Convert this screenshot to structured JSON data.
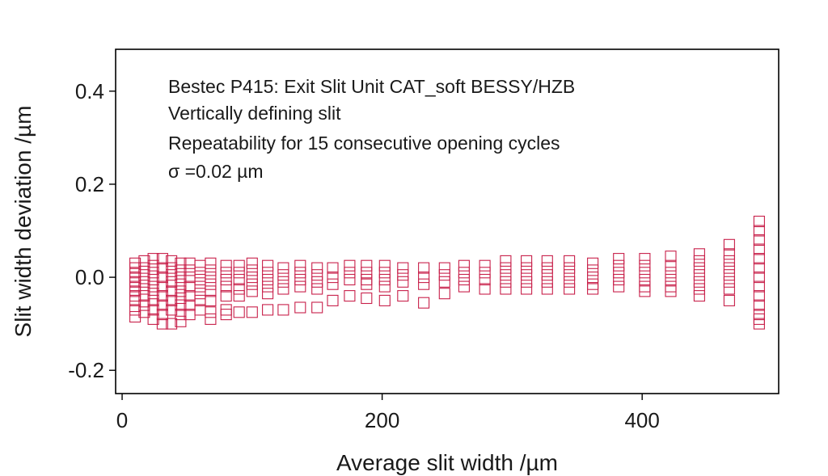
{
  "chart_data": {
    "type": "scatter",
    "xlabel": "Average slit width /µm",
    "ylabel": "Slit width deviation /µm",
    "xlim": [
      -5,
      505
    ],
    "ylim": [
      -0.25,
      0.49
    ],
    "xticks": [
      0,
      200,
      400
    ],
    "xtick_labels": [
      "0",
      "200",
      "400"
    ],
    "yticks": [
      -0.2,
      0.0,
      0.2,
      0.4
    ],
    "ytick_labels": [
      "-0.2",
      "0.0",
      "0.2",
      "0.4"
    ],
    "grid": false,
    "marker": "open-square",
    "color": "#c8204a",
    "annotations": [
      "Bestec P415: Exit Slit Unit CAT_soft BESSY/HZB",
      "Vertically defining slit",
      "Repeatability for 15 consecutive opening cycles",
      "σ =0.02 µm"
    ],
    "series": [
      {
        "points": [
          [
            10,
            0.03
          ],
          [
            10,
            0.02
          ],
          [
            10,
            0.01
          ],
          [
            10,
            0.0
          ],
          [
            10,
            -0.01
          ],
          [
            10,
            -0.02
          ],
          [
            10,
            -0.03
          ],
          [
            10,
            -0.04
          ],
          [
            10,
            -0.05
          ],
          [
            10,
            -0.07
          ],
          [
            10,
            -0.085
          ],
          [
            17,
            0.035
          ],
          [
            17,
            0.02
          ],
          [
            17,
            0.005
          ],
          [
            17,
            -0.01
          ],
          [
            17,
            -0.025
          ],
          [
            17,
            -0.04
          ],
          [
            17,
            -0.06
          ],
          [
            17,
            -0.075
          ],
          [
            24,
            0.04
          ],
          [
            24,
            0.025
          ],
          [
            24,
            0.01
          ],
          [
            24,
            -0.005
          ],
          [
            24,
            -0.02
          ],
          [
            24,
            -0.035
          ],
          [
            24,
            -0.05
          ],
          [
            24,
            -0.07
          ],
          [
            24,
            -0.09
          ],
          [
            31,
            0.04
          ],
          [
            31,
            0.02
          ],
          [
            31,
            0.0
          ],
          [
            31,
            -0.02
          ],
          [
            31,
            -0.04
          ],
          [
            31,
            -0.06
          ],
          [
            31,
            -0.08
          ],
          [
            31,
            -0.1
          ],
          [
            38,
            0.035
          ],
          [
            38,
            0.02
          ],
          [
            38,
            0.005
          ],
          [
            38,
            -0.01
          ],
          [
            38,
            -0.03
          ],
          [
            38,
            -0.05
          ],
          [
            38,
            -0.07
          ],
          [
            38,
            -0.1
          ],
          [
            45,
            0.03
          ],
          [
            45,
            0.015
          ],
          [
            45,
            0.0
          ],
          [
            45,
            -0.015
          ],
          [
            45,
            -0.03
          ],
          [
            45,
            -0.045
          ],
          [
            45,
            -0.06
          ],
          [
            45,
            -0.08
          ],
          [
            45,
            -0.095
          ],
          [
            52,
            0.03
          ],
          [
            52,
            0.015
          ],
          [
            52,
            0.0
          ],
          [
            52,
            -0.02
          ],
          [
            52,
            -0.04
          ],
          [
            52,
            -0.06
          ],
          [
            52,
            -0.08
          ],
          [
            60,
            0.025
          ],
          [
            60,
            0.01
          ],
          [
            60,
            -0.005
          ],
          [
            60,
            -0.02
          ],
          [
            60,
            -0.035
          ],
          [
            60,
            -0.05
          ],
          [
            60,
            -0.07
          ],
          [
            68,
            0.03
          ],
          [
            68,
            0.015
          ],
          [
            68,
            0.0
          ],
          [
            68,
            -0.015
          ],
          [
            68,
            -0.03
          ],
          [
            68,
            -0.05
          ],
          [
            68,
            -0.075
          ],
          [
            68,
            -0.09
          ],
          [
            80,
            0.025
          ],
          [
            80,
            0.01
          ],
          [
            80,
            -0.005
          ],
          [
            80,
            -0.02
          ],
          [
            80,
            -0.04
          ],
          [
            80,
            -0.07
          ],
          [
            80,
            -0.08
          ],
          [
            90,
            0.025
          ],
          [
            90,
            0.01
          ],
          [
            90,
            -0.005
          ],
          [
            90,
            -0.025
          ],
          [
            90,
            -0.04
          ],
          [
            90,
            -0.075
          ],
          [
            100,
            0.03
          ],
          [
            100,
            0.015
          ],
          [
            100,
            0.0
          ],
          [
            100,
            -0.015
          ],
          [
            100,
            -0.03
          ],
          [
            100,
            -0.075
          ],
          [
            112,
            0.025
          ],
          [
            112,
            0.01
          ],
          [
            112,
            -0.005
          ],
          [
            112,
            -0.02
          ],
          [
            112,
            -0.035
          ],
          [
            112,
            -0.07
          ],
          [
            124,
            0.02
          ],
          [
            124,
            0.005
          ],
          [
            124,
            -0.01
          ],
          [
            124,
            -0.025
          ],
          [
            124,
            -0.07
          ],
          [
            137,
            0.025
          ],
          [
            137,
            0.01
          ],
          [
            137,
            -0.005
          ],
          [
            137,
            -0.02
          ],
          [
            137,
            -0.065
          ],
          [
            150,
            0.02
          ],
          [
            150,
            0.005
          ],
          [
            150,
            -0.01
          ],
          [
            150,
            -0.025
          ],
          [
            150,
            -0.065
          ],
          [
            162,
            0.02
          ],
          [
            162,
            0.0
          ],
          [
            162,
            -0.015
          ],
          [
            162,
            -0.05
          ],
          [
            175,
            0.025
          ],
          [
            175,
            0.01
          ],
          [
            175,
            -0.005
          ],
          [
            175,
            -0.04
          ],
          [
            188,
            0.025
          ],
          [
            188,
            0.01
          ],
          [
            188,
            -0.005
          ],
          [
            188,
            -0.015
          ],
          [
            188,
            -0.045
          ],
          [
            202,
            0.025
          ],
          [
            202,
            0.01
          ],
          [
            202,
            -0.005
          ],
          [
            202,
            -0.02
          ],
          [
            202,
            -0.05
          ],
          [
            216,
            0.02
          ],
          [
            216,
            0.005
          ],
          [
            216,
            -0.01
          ],
          [
            216,
            -0.04
          ],
          [
            232,
            0.02
          ],
          [
            232,
            0.0
          ],
          [
            232,
            -0.015
          ],
          [
            232,
            -0.055
          ],
          [
            248,
            0.02
          ],
          [
            248,
            0.005
          ],
          [
            248,
            -0.01
          ],
          [
            248,
            -0.035
          ],
          [
            263,
            0.025
          ],
          [
            263,
            0.01
          ],
          [
            263,
            -0.005
          ],
          [
            263,
            -0.02
          ],
          [
            279,
            0.025
          ],
          [
            279,
            0.01
          ],
          [
            279,
            -0.005
          ],
          [
            279,
            -0.025
          ],
          [
            295,
            0.035
          ],
          [
            295,
            0.02
          ],
          [
            295,
            0.005
          ],
          [
            295,
            -0.01
          ],
          [
            295,
            -0.025
          ],
          [
            311,
            0.035
          ],
          [
            311,
            0.02
          ],
          [
            311,
            0.005
          ],
          [
            311,
            -0.01
          ],
          [
            311,
            -0.025
          ],
          [
            327,
            0.035
          ],
          [
            327,
            0.02
          ],
          [
            327,
            0.005
          ],
          [
            327,
            -0.01
          ],
          [
            327,
            -0.025
          ],
          [
            344,
            0.035
          ],
          [
            344,
            0.02
          ],
          [
            344,
            0.005
          ],
          [
            344,
            -0.01
          ],
          [
            344,
            -0.025
          ],
          [
            362,
            0.03
          ],
          [
            362,
            0.015
          ],
          [
            362,
            0.0
          ],
          [
            362,
            -0.015
          ],
          [
            362,
            -0.025
          ],
          [
            382,
            0.04
          ],
          [
            382,
            0.025
          ],
          [
            382,
            0.01
          ],
          [
            382,
            -0.005
          ],
          [
            382,
            -0.02
          ],
          [
            402,
            0.04
          ],
          [
            402,
            0.025
          ],
          [
            402,
            0.01
          ],
          [
            402,
            -0.005
          ],
          [
            402,
            -0.02
          ],
          [
            402,
            -0.03
          ],
          [
            422,
            0.045
          ],
          [
            422,
            0.025
          ],
          [
            422,
            0.01
          ],
          [
            422,
            -0.005
          ],
          [
            422,
            -0.02
          ],
          [
            422,
            -0.03
          ],
          [
            444,
            0.05
          ],
          [
            444,
            0.035
          ],
          [
            444,
            0.02
          ],
          [
            444,
            0.005
          ],
          [
            444,
            -0.01
          ],
          [
            444,
            -0.025
          ],
          [
            444,
            -0.04
          ],
          [
            467,
            0.07
          ],
          [
            467,
            0.05
          ],
          [
            467,
            0.035
          ],
          [
            467,
            0.02
          ],
          [
            467,
            0.005
          ],
          [
            467,
            -0.01
          ],
          [
            467,
            -0.025
          ],
          [
            467,
            -0.05
          ],
          [
            490,
            0.12
          ],
          [
            490,
            0.1
          ],
          [
            490,
            0.08
          ],
          [
            490,
            0.06
          ],
          [
            490,
            0.04
          ],
          [
            490,
            0.02
          ],
          [
            490,
            0.0
          ],
          [
            490,
            -0.02
          ],
          [
            490,
            -0.04
          ],
          [
            490,
            -0.06
          ],
          [
            490,
            -0.08
          ],
          [
            490,
            -0.09
          ],
          [
            490,
            -0.1
          ]
        ]
      }
    ]
  }
}
